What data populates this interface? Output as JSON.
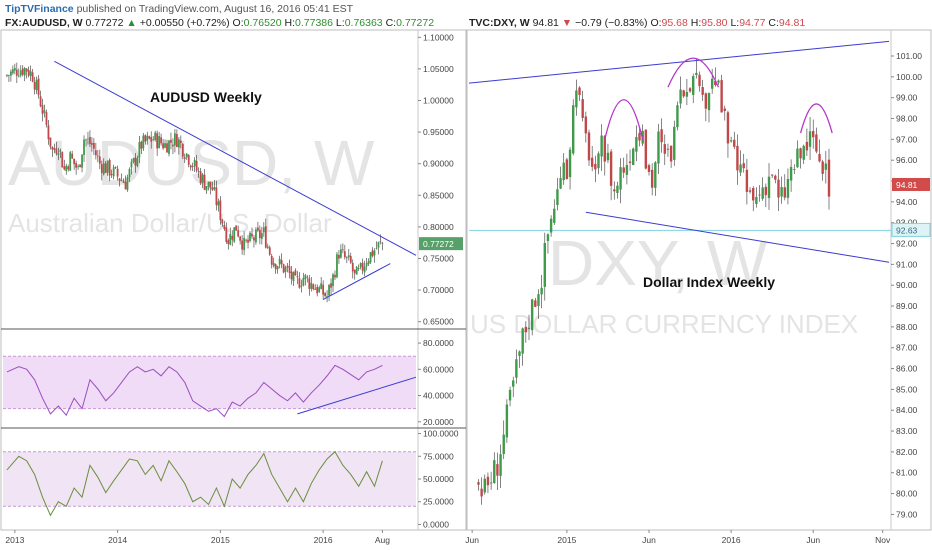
{
  "header": {
    "brand": "TipTVFinance",
    "published": "published on TradingView.com, August 16, 2016 05:41 EST"
  },
  "left_legend": {
    "symbol": "FX:AUDUSD, W",
    "last": "0.77272",
    "arrow": "▲",
    "change": "+0.00550 (+0.72%)",
    "o_label": "O:",
    "o": "0.76520",
    "h_label": "H:",
    "h": "0.77386",
    "l_label": "L:",
    "l": "0.76363",
    "c_label": "C:",
    "c": "0.77272"
  },
  "right_legend": {
    "symbol": "TVC:DXY, W",
    "last": "94.81",
    "arrow": "▼",
    "change": "−0.79 (−0.83%)",
    "o_label": "O:",
    "o": "95.68",
    "h_label": "H:",
    "h": "95.80",
    "l_label": "L:",
    "l": "94.77",
    "c_label": "C:",
    "c": "94.81"
  },
  "colors": {
    "up": "#3f9a4a",
    "down": "#c0484a",
    "trendline": "#3b3bd0",
    "rsi": "#9b4ec0",
    "rsi_band": "#f0dcf6",
    "stoch": "#6a8f3c",
    "stoch_band": "#f1e4f4",
    "arc": "#b438c8",
    "hline": "#7fd3e0",
    "watermark": "#e4e4e4",
    "axis_text": "#444444",
    "price_tag_green": "#57a06a",
    "price_tag_red": "#d24b4b"
  },
  "chart_data": [
    {
      "type": "candlestick",
      "title": "AUDUSD Weekly",
      "watermark": "AUDUSD, W",
      "watermark_sub": "Australian Dollar/U.S. Dollar",
      "ylim": [
        0.64,
        1.11
      ],
      "y_ticks": [
        "1.10000",
        "1.05000",
        "1.00000",
        "0.95000",
        "0.90000",
        "0.85000",
        "0.80000",
        "0.75000",
        "0.70000",
        "0.65000"
      ],
      "y_tick_values": [
        1.1,
        1.05,
        1.0,
        0.95,
        0.9,
        0.85,
        0.8,
        0.75,
        0.7,
        0.65
      ],
      "last_price": "0.77272",
      "last_value": 0.7727,
      "x_labels": [
        "2013",
        "2014",
        "2015",
        "2016",
        "Aug"
      ],
      "x_label_weeks": [
        4,
        56,
        108,
        160,
        190
      ],
      "week_range": [
        -2,
        207
      ],
      "close_path": [
        [
          0,
          1.04
        ],
        [
          6,
          1.05
        ],
        [
          10,
          1.05
        ],
        [
          13,
          1.04
        ],
        [
          16,
          1.01
        ],
        [
          20,
          0.96
        ],
        [
          23,
          0.92
        ],
        [
          26,
          0.93
        ],
        [
          29,
          0.89
        ],
        [
          32,
          0.91
        ],
        [
          36,
          0.89
        ],
        [
          39,
          0.94
        ],
        [
          43,
          0.93
        ],
        [
          47,
          0.9
        ],
        [
          52,
          0.89
        ],
        [
          56,
          0.88
        ],
        [
          60,
          0.87
        ],
        [
          64,
          0.9
        ],
        [
          68,
          0.93
        ],
        [
          74,
          0.94
        ],
        [
          80,
          0.93
        ],
        [
          86,
          0.94
        ],
        [
          92,
          0.91
        ],
        [
          96,
          0.89
        ],
        [
          100,
          0.87
        ],
        [
          104,
          0.86
        ],
        [
          108,
          0.82
        ],
        [
          112,
          0.78
        ],
        [
          116,
          0.8
        ],
        [
          120,
          0.77
        ],
        [
          124,
          0.78
        ],
        [
          130,
          0.79
        ],
        [
          134,
          0.75
        ],
        [
          138,
          0.74
        ],
        [
          142,
          0.73
        ],
        [
          146,
          0.71
        ],
        [
          150,
          0.72
        ],
        [
          154,
          0.71
        ],
        [
          158,
          0.7
        ],
        [
          162,
          0.69
        ],
        [
          165,
          0.72
        ],
        [
          168,
          0.76
        ],
        [
          171,
          0.75
        ],
        [
          174,
          0.74
        ],
        [
          176,
          0.72
        ],
        [
          179,
          0.73
        ],
        [
          182,
          0.75
        ],
        [
          185,
          0.76
        ],
        [
          188,
          0.77
        ],
        [
          190,
          0.773
        ]
      ],
      "trendlines": [
        {
          "from": [
            24,
            1.062
          ],
          "to": [
            207,
            0.755
          ]
        },
        {
          "from": [
            160,
            0.685
          ],
          "to": [
            194,
            0.742
          ]
        }
      ],
      "rsi": {
        "ylim": [
          16,
          90
        ],
        "y_ticks": [
          "80.0000",
          "60.0000",
          "40.0000",
          "20.0000"
        ],
        "y_tick_values": [
          80,
          60,
          40,
          20
        ],
        "band": [
          30,
          70
        ],
        "path": [
          [
            0,
            58
          ],
          [
            6,
            62
          ],
          [
            10,
            60
          ],
          [
            14,
            52
          ],
          [
            18,
            38
          ],
          [
            22,
            26
          ],
          [
            26,
            32
          ],
          [
            30,
            25
          ],
          [
            34,
            38
          ],
          [
            38,
            30
          ],
          [
            42,
            52
          ],
          [
            46,
            45
          ],
          [
            50,
            36
          ],
          [
            54,
            42
          ],
          [
            58,
            50
          ],
          [
            62,
            58
          ],
          [
            66,
            62
          ],
          [
            70,
            58
          ],
          [
            74,
            60
          ],
          [
            78,
            55
          ],
          [
            82,
            62
          ],
          [
            86,
            58
          ],
          [
            90,
            50
          ],
          [
            94,
            36
          ],
          [
            98,
            32
          ],
          [
            102,
            28
          ],
          [
            106,
            30
          ],
          [
            110,
            24
          ],
          [
            114,
            35
          ],
          [
            118,
            32
          ],
          [
            122,
            38
          ],
          [
            126,
            42
          ],
          [
            130,
            50
          ],
          [
            134,
            45
          ],
          [
            138,
            40
          ],
          [
            142,
            36
          ],
          [
            146,
            42
          ],
          [
            150,
            35
          ],
          [
            154,
            42
          ],
          [
            158,
            48
          ],
          [
            162,
            55
          ],
          [
            166,
            63
          ],
          [
            170,
            60
          ],
          [
            174,
            56
          ],
          [
            178,
            52
          ],
          [
            182,
            58
          ],
          [
            186,
            60
          ],
          [
            190,
            63
          ]
        ],
        "trendline": {
          "from": [
            147,
            26
          ],
          "to": [
            207,
            54
          ]
        }
      },
      "stochastic": {
        "ylim": [
          -5,
          105
        ],
        "y_ticks": [
          "100.0000",
          "75.0000",
          "50.0000",
          "25.0000",
          "0.0000"
        ],
        "y_tick_values": [
          100,
          75,
          50,
          25,
          0
        ],
        "band": [
          20,
          80
        ],
        "path": [
          [
            0,
            60
          ],
          [
            6,
            75
          ],
          [
            10,
            70
          ],
          [
            14,
            55
          ],
          [
            18,
            30
          ],
          [
            22,
            10
          ],
          [
            26,
            25
          ],
          [
            30,
            20
          ],
          [
            34,
            40
          ],
          [
            38,
            30
          ],
          [
            42,
            65
          ],
          [
            46,
            52
          ],
          [
            50,
            35
          ],
          [
            54,
            48
          ],
          [
            58,
            60
          ],
          [
            62,
            72
          ],
          [
            66,
            70
          ],
          [
            70,
            55
          ],
          [
            74,
            65
          ],
          [
            78,
            48
          ],
          [
            82,
            70
          ],
          [
            86,
            58
          ],
          [
            90,
            45
          ],
          [
            94,
            25
          ],
          [
            98,
            30
          ],
          [
            102,
            22
          ],
          [
            106,
            40
          ],
          [
            110,
            20
          ],
          [
            114,
            50
          ],
          [
            118,
            40
          ],
          [
            122,
            55
          ],
          [
            126,
            65
          ],
          [
            130,
            78
          ],
          [
            134,
            55
          ],
          [
            138,
            40
          ],
          [
            142,
            25
          ],
          [
            146,
            40
          ],
          [
            150,
            25
          ],
          [
            154,
            45
          ],
          [
            158,
            60
          ],
          [
            162,
            72
          ],
          [
            166,
            80
          ],
          [
            170,
            65
          ],
          [
            174,
            55
          ],
          [
            178,
            42
          ],
          [
            182,
            58
          ],
          [
            186,
            42
          ],
          [
            190,
            70
          ]
        ]
      }
    },
    {
      "type": "candlestick",
      "title": "Dollar Index Weekly",
      "watermark": "DXY, W",
      "watermark_sub": "US DOLLAR CURRENCY INDEX",
      "ylim": [
        78.3,
        102.2
      ],
      "y_ticks": [
        "101.00",
        "100.00",
        "99.00",
        "98.00",
        "97.00",
        "96.00",
        "95.00",
        "94.00",
        "93.00",
        "92.00",
        "91.00",
        "90.00",
        "89.00",
        "88.00",
        "87.00",
        "86.00",
        "85.00",
        "84.00",
        "83.00",
        "82.00",
        "81.00",
        "80.00",
        "79.00"
      ],
      "y_tick_values": [
        101,
        100,
        99,
        98,
        97,
        96,
        95,
        94,
        93,
        92,
        91,
        90,
        89,
        88,
        87,
        86,
        85,
        84,
        83,
        82,
        81,
        80,
        79
      ],
      "last_price": "94.81",
      "last_value": 94.81,
      "hline_value": 92.63,
      "hline_label": "92.63",
      "x_labels": [
        "Jun",
        "2015",
        "Jun",
        "2016",
        "Jun",
        "Nov"
      ],
      "x_label_weeks": [
        0,
        30,
        56,
        82,
        108,
        130
      ],
      "week_range": [
        -1,
        132
      ],
      "close_path": [
        [
          2,
          80.5
        ],
        [
          4,
          80.2
        ],
        [
          6,
          80.8
        ],
        [
          8,
          81.5
        ],
        [
          10,
          82.8
        ],
        [
          12,
          84.5
        ],
        [
          14,
          86.0
        ],
        [
          16,
          87.5
        ],
        [
          18,
          88.5
        ],
        [
          20,
          89.5
        ],
        [
          22,
          90.5
        ],
        [
          24,
          92.5
        ],
        [
          26,
          94.0
        ],
        [
          28,
          95.0
        ],
        [
          30,
          95.5
        ],
        [
          32,
          98.5
        ],
        [
          33,
          100.0
        ],
        [
          35,
          97.5
        ],
        [
          37,
          96.5
        ],
        [
          39,
          95.0
        ],
        [
          41,
          96.5
        ],
        [
          43,
          96.0
        ],
        [
          45,
          94.5
        ],
        [
          47,
          95.5
        ],
        [
          49,
          96.0
        ],
        [
          51,
          97.0
        ],
        [
          53,
          97.5
        ],
        [
          55,
          96.0
        ],
        [
          57,
          95.0
        ],
        [
          59,
          97.0
        ],
        [
          61,
          96.0
        ],
        [
          63,
          96.5
        ],
        [
          65,
          98.0
        ],
        [
          67,
          99.5
        ],
        [
          69,
          100.0
        ],
        [
          71,
          99.5
        ],
        [
          73,
          98.5
        ],
        [
          75,
          99.5
        ],
        [
          77,
          100.0
        ],
        [
          79,
          98.5
        ],
        [
          81,
          97.0
        ],
        [
          83,
          96.0
        ],
        [
          85,
          95.5
        ],
        [
          87,
          94.5
        ],
        [
          89,
          94.0
        ],
        [
          91,
          94.5
        ],
        [
          93,
          95.0
        ],
        [
          95,
          95.5
        ],
        [
          97,
          94.0
        ],
        [
          99,
          94.5
        ],
        [
          101,
          95.5
        ],
        [
          103,
          96.0
        ],
        [
          105,
          96.5
        ],
        [
          107,
          97.0
        ],
        [
          109,
          96.5
        ],
        [
          111,
          95.5
        ],
        [
          113,
          94.8
        ]
      ],
      "trendlines": [
        {
          "from": [
            -1,
            99.7
          ],
          "to": [
            132,
            101.7
          ]
        },
        {
          "from": [
            36,
            93.5
          ],
          "to": [
            132,
            91.1
          ]
        }
      ],
      "arcs": [
        {
          "center_week": 48,
          "width_weeks": 12,
          "base": 97.0,
          "peak": 98.9
        },
        {
          "center_week": 70,
          "width_weeks": 16,
          "base": 99.5,
          "peak": 100.9
        },
        {
          "center_week": 109,
          "width_weeks": 10,
          "base": 97.3,
          "peak": 98.7
        }
      ]
    }
  ]
}
